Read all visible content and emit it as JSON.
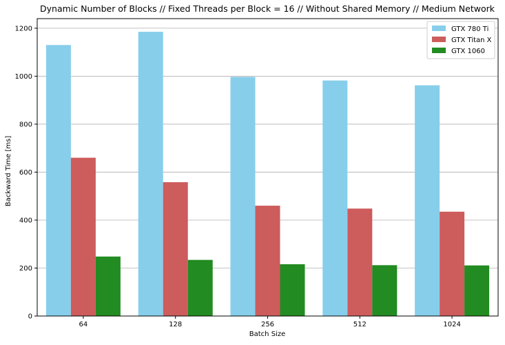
{
  "chart_data": {
    "type": "bar",
    "title": "Dynamic Number of Blocks // Fixed Threads per Block = 16 // Without Shared Memory // Medium Network",
    "xlabel": "Batch Size",
    "ylabel": "Backward Time [ms]",
    "categories": [
      "64",
      "128",
      "256",
      "512",
      "1024"
    ],
    "ylim": [
      0,
      1240
    ],
    "yticks": [
      0,
      200,
      400,
      600,
      800,
      1000,
      1200
    ],
    "grid": "horizontal",
    "legend_position": "top-right",
    "series": [
      {
        "name": "GTX 780 Ti",
        "color": "#87ceeb",
        "values": [
          1130,
          1185,
          997,
          982,
          962
        ]
      },
      {
        "name": "GTX Titan X",
        "color": "#cd5c5c",
        "values": [
          660,
          558,
          460,
          448,
          435
        ]
      },
      {
        "name": "GTX 1060",
        "color": "#228b22",
        "values": [
          248,
          234,
          216,
          212,
          211
        ]
      }
    ]
  }
}
